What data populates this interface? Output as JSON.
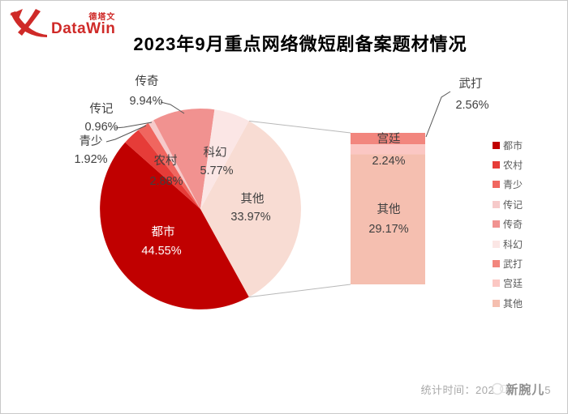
{
  "logo": {
    "brand_cn": "德塔文",
    "brand_en": "DataWin",
    "color": "#cf2a28"
  },
  "header": {
    "title": "2023年9月重点网络微短剧备案题材情况"
  },
  "chart_data": {
    "type": "bar-of-pie",
    "title": "2023年9月重点网络微短剧备案题材情况",
    "legend_position": "right",
    "pie_series": [
      {
        "name": "都市",
        "value": 44.55,
        "label": "44.55%",
        "color": "#c00000"
      },
      {
        "name": "农村",
        "value": 2.88,
        "label": "2.88%",
        "color": "#e63c38"
      },
      {
        "name": "青少",
        "value": 1.92,
        "label": "1.92%",
        "color": "#f0665f"
      },
      {
        "name": "传记",
        "value": 0.96,
        "label": "0.96%",
        "color": "#f6caca"
      },
      {
        "name": "传奇",
        "value": 9.94,
        "label": "9.94%",
        "color": "#f19290"
      },
      {
        "name": "科幻",
        "value": 5.77,
        "label": "5.77%",
        "color": "#fbe6e5"
      },
      {
        "name": "其他",
        "value": 33.97,
        "label": "33.97%",
        "color": "#f8dcd3"
      }
    ],
    "bar_series": [
      {
        "name": "武打",
        "value": 2.56,
        "label": "2.56%",
        "color": "#f2867e"
      },
      {
        "name": "宫廷",
        "value": 2.24,
        "label": "2.24%",
        "color": "#fbc7c3"
      },
      {
        "name": "其他",
        "value": 29.17,
        "label": "29.17%",
        "color": "#f5bfb0"
      }
    ],
    "legend_items": [
      {
        "label": "都市",
        "color": "#c00000"
      },
      {
        "label": "农村",
        "color": "#e63c38"
      },
      {
        "label": "青少",
        "color": "#f0665f"
      },
      {
        "label": "传记",
        "color": "#f6caca"
      },
      {
        "label": "传奇",
        "color": "#f19290"
      },
      {
        "label": "科幻",
        "color": "#fbe6e5"
      },
      {
        "label": "武打",
        "color": "#f2867e"
      },
      {
        "label": "宫廷",
        "color": "#fbc7c3"
      },
      {
        "label": "其他",
        "color": "#f5bfb0"
      }
    ]
  },
  "footer": {
    "stat_label": "统计时间：202",
    "stat_suffix": "5",
    "watermark": "新腕儿"
  }
}
